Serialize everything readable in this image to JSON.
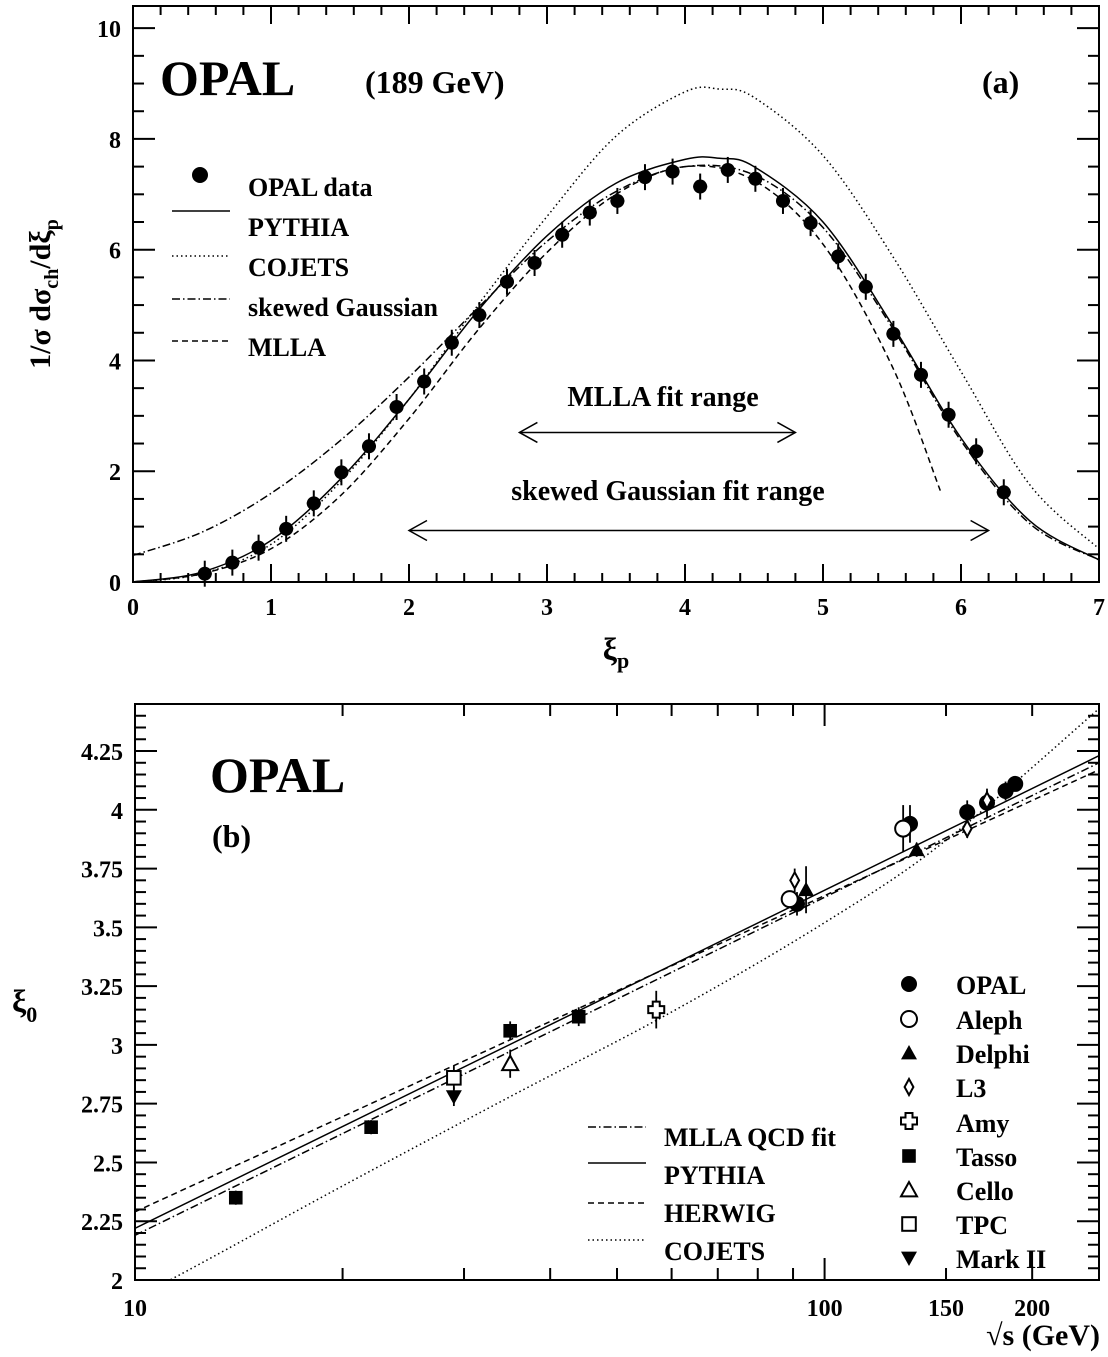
{
  "chart_data": [
    {
      "type": "line",
      "panel": "(a)",
      "experiment": "OPAL",
      "energy": "(189 GeV)",
      "xlabel": "ξp",
      "ylabel": "1/σ dσch/dξp",
      "xlim": [
        0,
        7
      ],
      "ylim": [
        0,
        10.4
      ],
      "xticks": [
        "0",
        "1",
        "2",
        "3",
        "4",
        "5",
        "6",
        "7"
      ],
      "yticks": [
        "0",
        "2",
        "4",
        "6",
        "8",
        "10"
      ],
      "legend": [
        "OPAL data",
        "PYTHIA",
        "COJETS",
        "skewed Gaussian",
        "MLLA"
      ],
      "annotations": {
        "mlla_range": "MLLA fit range",
        "sg_range": "skewed Gaussian fit range"
      },
      "fit_ranges": {
        "mlla": [
          2.8,
          4.8
        ],
        "skewed_gaussian": [
          2.0,
          6.2
        ]
      },
      "series": [
        {
          "name": "OPAL data",
          "style": "points",
          "x": [
            0.52,
            0.72,
            0.91,
            1.11,
            1.31,
            1.51,
            1.71,
            1.91,
            2.11,
            2.31,
            2.51,
            2.71,
            2.91,
            3.11,
            3.31,
            3.51,
            3.71,
            3.91,
            4.11,
            4.31,
            4.51,
            4.71,
            4.91,
            5.11,
            5.31,
            5.51,
            5.71,
            5.91,
            6.11,
            6.31
          ],
          "y": [
            0.15,
            0.35,
            0.62,
            0.96,
            1.42,
            1.98,
            2.45,
            3.16,
            3.62,
            4.32,
            4.82,
            5.42,
            5.76,
            6.27,
            6.67,
            6.88,
            7.31,
            7.41,
            7.14,
            7.44,
            7.28,
            6.88,
            6.48,
            5.88,
            5.33,
            4.48,
            3.74,
            3.02,
            2.36,
            1.62
          ]
        },
        {
          "name": "PYTHIA",
          "style": "solid",
          "x": [
            0,
            0.5,
            1,
            1.5,
            2,
            2.5,
            3,
            3.5,
            4,
            4.25,
            4.5,
            5,
            5.5,
            6,
            6.5,
            7
          ],
          "y": [
            0,
            0.18,
            0.75,
            1.85,
            3.3,
            4.9,
            6.25,
            7.2,
            7.63,
            7.65,
            7.5,
            6.5,
            4.65,
            2.6,
            1.1,
            0.4
          ]
        },
        {
          "name": "COJETS",
          "style": "dotted",
          "x": [
            0,
            0.5,
            1,
            1.5,
            2,
            2.5,
            3,
            3.5,
            4,
            4.25,
            4.5,
            5,
            5.5,
            6,
            6.5,
            7
          ],
          "y": [
            0,
            0.15,
            0.68,
            1.8,
            3.3,
            5.0,
            6.6,
            8.05,
            8.85,
            8.9,
            8.75,
            7.7,
            5.9,
            3.8,
            1.75,
            0.6
          ]
        },
        {
          "name": "skewed Gaussian",
          "style": "dashdot",
          "x": [
            0,
            0.5,
            1,
            1.5,
            2,
            2.5,
            3,
            3.5,
            4,
            4.5,
            5,
            5.5,
            6,
            6.5,
            7
          ],
          "y": [
            0.48,
            0.9,
            1.6,
            2.55,
            3.7,
            4.95,
            6.15,
            7.05,
            7.5,
            7.35,
            6.4,
            4.6,
            2.55,
            1.05,
            0.4
          ]
        },
        {
          "name": "MLLA",
          "style": "dashed",
          "x": [
            0,
            0.5,
            1,
            1.5,
            2,
            2.5,
            3,
            3.5,
            4,
            4.5,
            5,
            5.5,
            5.85
          ],
          "y": [
            0,
            0.15,
            0.6,
            1.55,
            2.95,
            4.55,
            5.95,
            7.0,
            7.5,
            7.25,
            6.1,
            3.9,
            1.65
          ]
        }
      ]
    },
    {
      "type": "line",
      "panel": "(b)",
      "experiment": "OPAL",
      "xlabel": "√s (GeV)",
      "ylabel": "ξ0",
      "xscale": "log",
      "xlim": [
        10,
        250
      ],
      "ylim": [
        2,
        4.45
      ],
      "xticks": [
        "10",
        "100",
        "150",
        "200"
      ],
      "yticks": [
        "2",
        "2.25",
        "2.5",
        "2.75",
        "3",
        "3.25",
        "3.5",
        "3.75",
        "4",
        "4.25"
      ],
      "curve_legend": [
        "MLLA QCD fit",
        "PYTHIA",
        "HERWIG",
        "COJETS"
      ],
      "marker_legend": [
        "OPAL",
        "Aleph",
        "Delphi",
        "L3",
        "Amy",
        "Tasso",
        "Cello",
        "TPC",
        "Mark II"
      ],
      "curves": [
        {
          "name": "MLLA QCD fit",
          "style": "dashdot",
          "x": [
            10,
            250
          ],
          "y": [
            2.19,
            4.2
          ]
        },
        {
          "name": "PYTHIA",
          "style": "solid",
          "x": [
            10,
            250
          ],
          "y": [
            2.22,
            4.23
          ]
        },
        {
          "name": "HERWIG",
          "style": "dashed",
          "x": [
            10,
            250
          ],
          "y": [
            2.29,
            4.17
          ]
        },
        {
          "name": "COJETS",
          "style": "dotted",
          "x": [
            10,
            13,
            20,
            35,
            60,
            100,
            150,
            250
          ],
          "y": [
            1.92,
            2.1,
            2.4,
            2.78,
            3.14,
            3.52,
            3.87,
            4.43
          ]
        }
      ],
      "points": [
        {
          "exp": "OPAL",
          "marker": "filled-circle",
          "data": [
            [
              91.2,
              3.6,
              0.05
            ],
            [
              133,
              3.94,
              0.08
            ],
            [
              161,
              3.99,
              0.05
            ],
            [
              172,
              4.03,
              0.06
            ],
            [
              183,
              4.08,
              0.04
            ],
            [
              189,
              4.11,
              0.03
            ]
          ]
        },
        {
          "exp": "Aleph",
          "marker": "open-circle",
          "data": [
            [
              89,
              3.62,
              0.02
            ],
            [
              130,
              3.92,
              0.1
            ]
          ]
        },
        {
          "exp": "Delphi",
          "marker": "filled-triangle",
          "data": [
            [
              94,
              3.66,
              0.1
            ],
            [
              136,
              3.83,
              0.03
            ]
          ]
        },
        {
          "exp": "L3",
          "marker": "open-diamond",
          "data": [
            [
              90.5,
              3.7,
              0.05
            ],
            [
              161,
              3.92,
              0.04
            ],
            [
              172,
              4.04,
              0.04
            ]
          ]
        },
        {
          "exp": "Amy",
          "marker": "open-cross",
          "data": [
            [
              57,
              3.15,
              0.08
            ]
          ]
        },
        {
          "exp": "Tasso",
          "marker": "filled-square",
          "data": [
            [
              14,
              2.35,
              0.03
            ],
            [
              22,
              2.65,
              0.03
            ],
            [
              35,
              3.06,
              0.04
            ],
            [
              44,
              3.12,
              0.04
            ]
          ]
        },
        {
          "exp": "Cello",
          "marker": "open-triangle",
          "data": [
            [
              35,
              2.92,
              0.06
            ]
          ]
        },
        {
          "exp": "TPC",
          "marker": "open-square",
          "data": [
            [
              29,
              2.86,
              0.05
            ]
          ]
        },
        {
          "exp": "Mark II",
          "marker": "filled-triangle-down",
          "data": [
            [
              29,
              2.78,
              0.04
            ]
          ]
        }
      ]
    }
  ]
}
